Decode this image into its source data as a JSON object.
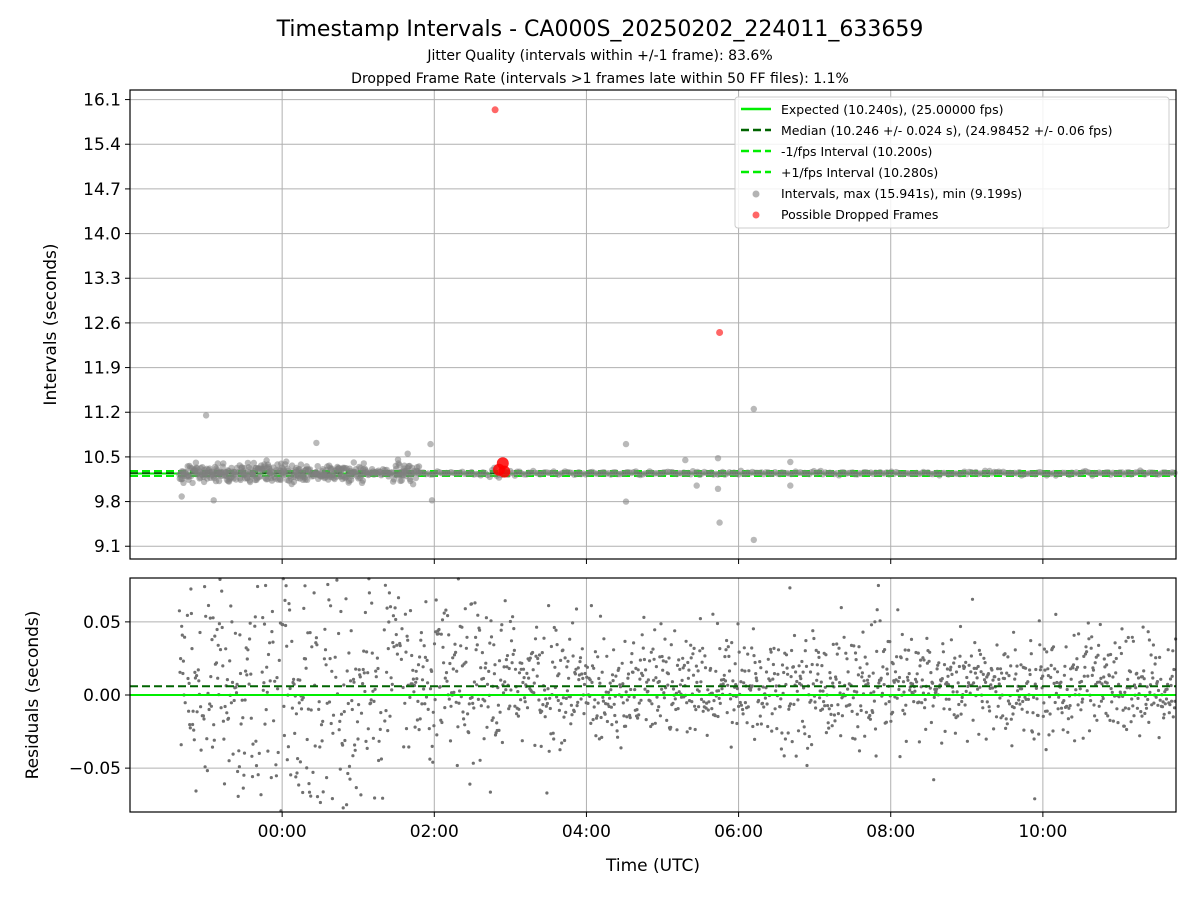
{
  "header": {
    "title": "Timestamp Intervals - CA000S_20250202_224011_633659",
    "subtitle_1": "Jitter Quality (intervals within +/-1 frame): 83.6%",
    "subtitle_2": "Dropped Frame Rate (intervals >1 frames late within 50 FF files): 1.1%"
  },
  "chart_data": [
    {
      "type": "scatter",
      "name": "intervals",
      "ylabel": "Intervals (seconds)",
      "xlabel": "",
      "x_unit": "hours (UTC) relative to 00:00",
      "xlim": [
        -2.0,
        11.75
      ],
      "ylim": [
        8.9,
        16.25
      ],
      "y_ticks": [
        "9.1",
        "9.8",
        "10.5",
        "11.2",
        "11.9",
        "12.6",
        "13.3",
        "14.0",
        "14.7",
        "15.4",
        "16.1"
      ],
      "reference_lines": [
        {
          "label": "Expected (10.240s), (25.00000 fps)",
          "y": 10.24,
          "style": "solid",
          "color": "#00ee00"
        },
        {
          "label": "Median (10.246 +/- 0.024 s), (24.98452 +/- 0.06 fps)",
          "y": 10.246,
          "style": "dashed",
          "color": "#006400"
        },
        {
          "label": "-1/fps Interval (10.200s)",
          "y": 10.2,
          "style": "dashed",
          "color": "#00ee00"
        },
        {
          "label": "+1/fps Interval (10.280s)",
          "y": 10.28,
          "style": "dashed",
          "color": "#00ee00"
        }
      ],
      "series": [
        {
          "name": "Intervals, max (15.941s), min (9.199s)",
          "color": "#808080",
          "outliers": [
            {
              "x": -1.32,
              "y": 9.88
            },
            {
              "x": -1.0,
              "y": 11.15
            },
            {
              "x": -0.9,
              "y": 9.82
            },
            {
              "x": 0.45,
              "y": 10.72
            },
            {
              "x": 1.65,
              "y": 10.55
            },
            {
              "x": 1.95,
              "y": 10.7
            },
            {
              "x": 1.97,
              "y": 9.82
            },
            {
              "x": 4.52,
              "y": 10.7
            },
            {
              "x": 4.52,
              "y": 9.8
            },
            {
              "x": 5.3,
              "y": 10.45
            },
            {
              "x": 5.45,
              "y": 10.05
            },
            {
              "x": 5.73,
              "y": 10.48
            },
            {
              "x": 5.73,
              "y": 10.0
            },
            {
              "x": 5.75,
              "y": 9.47
            },
            {
              "x": 6.2,
              "y": 11.25
            },
            {
              "x": 6.2,
              "y": 9.2
            },
            {
              "x": 6.68,
              "y": 10.42
            },
            {
              "x": 6.68,
              "y": 10.05
            }
          ]
        },
        {
          "name": "Possible Dropped Frames",
          "color": "#ff0000",
          "points": [
            {
              "x": 2.8,
              "y": 15.94
            },
            {
              "x": 5.75,
              "y": 12.45
            },
            {
              "x": 2.85,
              "y": 10.3
            },
            {
              "x": 2.9,
              "y": 10.4
            },
            {
              "x": 2.92,
              "y": 10.27
            }
          ]
        }
      ],
      "legend": "upper-right"
    },
    {
      "type": "scatter",
      "name": "residuals",
      "xlabel": "Time (UTC)",
      "ylabel": "Residuals (seconds)",
      "xlim": [
        -2.0,
        11.75
      ],
      "ylim": [
        -0.08,
        0.08
      ],
      "x_ticks": [
        "00:00",
        "02:00",
        "04:00",
        "06:00",
        "08:00",
        "10:00"
      ],
      "y_ticks": [
        "−0.05",
        "0.00",
        "0.05"
      ],
      "reference_lines": [
        {
          "y": 0.0,
          "style": "solid",
          "color": "#00ee00"
        },
        {
          "y": 0.006,
          "style": "dashed",
          "color": "#006400"
        }
      ],
      "series": [
        {
          "color": "#707070"
        }
      ]
    }
  ]
}
